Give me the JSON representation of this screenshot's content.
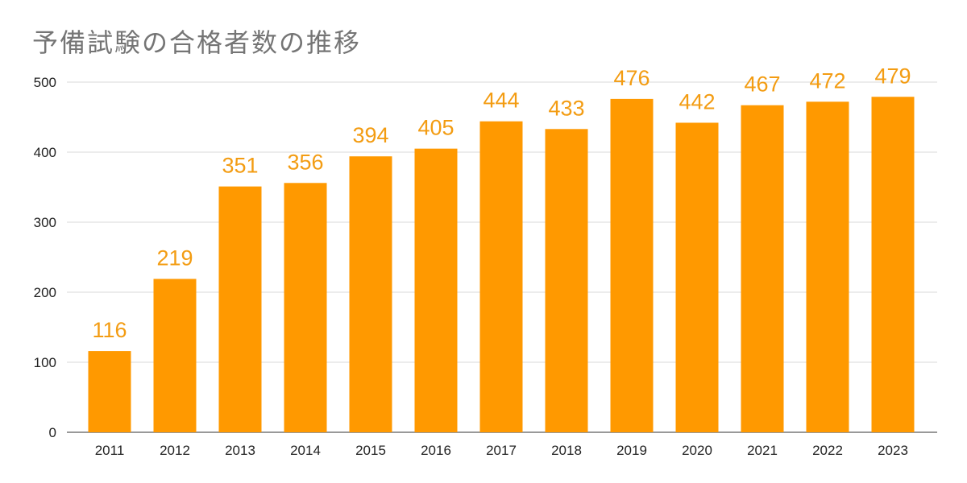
{
  "chart_data": {
    "type": "bar",
    "title": "予備試験の合格者数の推移",
    "categories": [
      "2011",
      "2012",
      "2013",
      "2014",
      "2015",
      "2016",
      "2017",
      "2018",
      "2019",
      "2020",
      "2021",
      "2022",
      "2023"
    ],
    "values": [
      116,
      219,
      351,
      356,
      394,
      405,
      444,
      433,
      476,
      442,
      467,
      472,
      479
    ],
    "xlabel": "",
    "ylabel": "",
    "ylim": [
      0,
      500
    ],
    "yticks": [
      0,
      100,
      200,
      300,
      400,
      500
    ],
    "grid": true,
    "data_labels": true,
    "legend": "none",
    "colors": {
      "bar": "#FF9900",
      "label": "#F39C12",
      "grid": "#D9D9D9",
      "title": "#757575"
    }
  }
}
